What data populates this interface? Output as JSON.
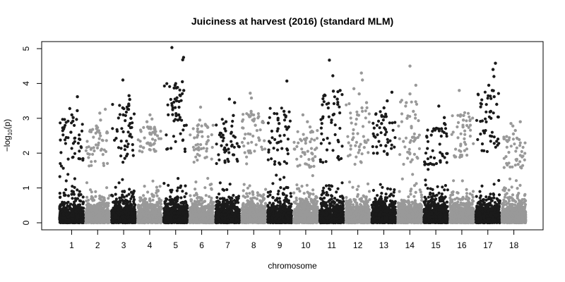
{
  "chart_data": {
    "type": "scatter",
    "title": "Juiciness at harvest (2016) (standard MLM)",
    "xlabel": "chromosome",
    "ylabel_main": "−log",
    "ylabel_sub": "10",
    "ylabel_tail": "(p)",
    "ylim": [
      -0.2,
      5.2
    ],
    "yticks": [
      0,
      1,
      2,
      3,
      4,
      5
    ],
    "grid": false,
    "legend": "none",
    "colors": {
      "odd": "#1a1a1a",
      "even": "#999999"
    },
    "chromosomes": [
      {
        "label": "1",
        "max": 3.62,
        "top": [
          3.62,
          3.28,
          3.22,
          3.1,
          3.02,
          2.92,
          2.6
        ]
      },
      {
        "label": "2",
        "max": 3.26,
        "top": [
          3.26,
          3.15,
          2.95,
          2.78,
          2.7,
          2.62
        ]
      },
      {
        "label": "3",
        "max": 4.1,
        "top": [
          4.1,
          3.65,
          3.54,
          3.3,
          3.1,
          3.0,
          2.85
        ]
      },
      {
        "label": "4",
        "max": 3.1,
        "top": [
          3.1,
          2.98,
          2.9,
          2.75,
          2.62
        ]
      },
      {
        "label": "5",
        "max": 5.03,
        "top": [
          5.03,
          4.75,
          4.68,
          4.05,
          3.95,
          3.8,
          3.65,
          3.5,
          3.3,
          3.1,
          2.95
        ]
      },
      {
        "label": "6",
        "max": 3.32,
        "top": [
          3.32,
          2.95,
          2.8,
          2.6
        ]
      },
      {
        "label": "7",
        "max": 3.55,
        "top": [
          3.55,
          3.45,
          3.08,
          2.9,
          2.7
        ]
      },
      {
        "label": "8",
        "max": 3.72,
        "top": [
          3.72,
          3.58,
          3.2,
          3.05,
          2.95,
          2.8
        ]
      },
      {
        "label": "9",
        "max": 4.07,
        "top": [
          4.07,
          3.2,
          3.0,
          2.85,
          2.7
        ]
      },
      {
        "label": "10",
        "max": 3.1,
        "top": [
          3.1,
          2.9,
          2.75,
          2.6
        ]
      },
      {
        "label": "11",
        "max": 4.67,
        "top": [
          4.67,
          4.22,
          3.8,
          3.78,
          3.55,
          3.4,
          3.1,
          2.95
        ]
      },
      {
        "label": "12",
        "max": 4.3,
        "top": [
          4.3,
          4.1,
          3.85,
          3.7,
          3.45,
          3.3,
          3.1
        ]
      },
      {
        "label": "13",
        "max": 3.75,
        "top": [
          3.75,
          3.5,
          3.3,
          3.05,
          2.85
        ]
      },
      {
        "label": "14",
        "max": 4.5,
        "top": [
          4.5,
          3.95,
          3.7,
          3.45,
          3.2,
          3.0
        ]
      },
      {
        "label": "15",
        "max": 3.35,
        "top": [
          3.35,
          3.02,
          2.85,
          2.7
        ]
      },
      {
        "label": "16",
        "max": 3.8,
        "top": [
          3.8,
          3.1,
          2.95,
          2.75
        ]
      },
      {
        "label": "17",
        "max": 4.58,
        "top": [
          4.58,
          4.4,
          4.2,
          3.95,
          3.8,
          3.62,
          3.4,
          3.2,
          3.0
        ]
      },
      {
        "label": "18",
        "max": 2.9,
        "top": [
          2.9,
          2.85,
          2.78,
          2.65,
          2.55
        ]
      }
    ]
  }
}
